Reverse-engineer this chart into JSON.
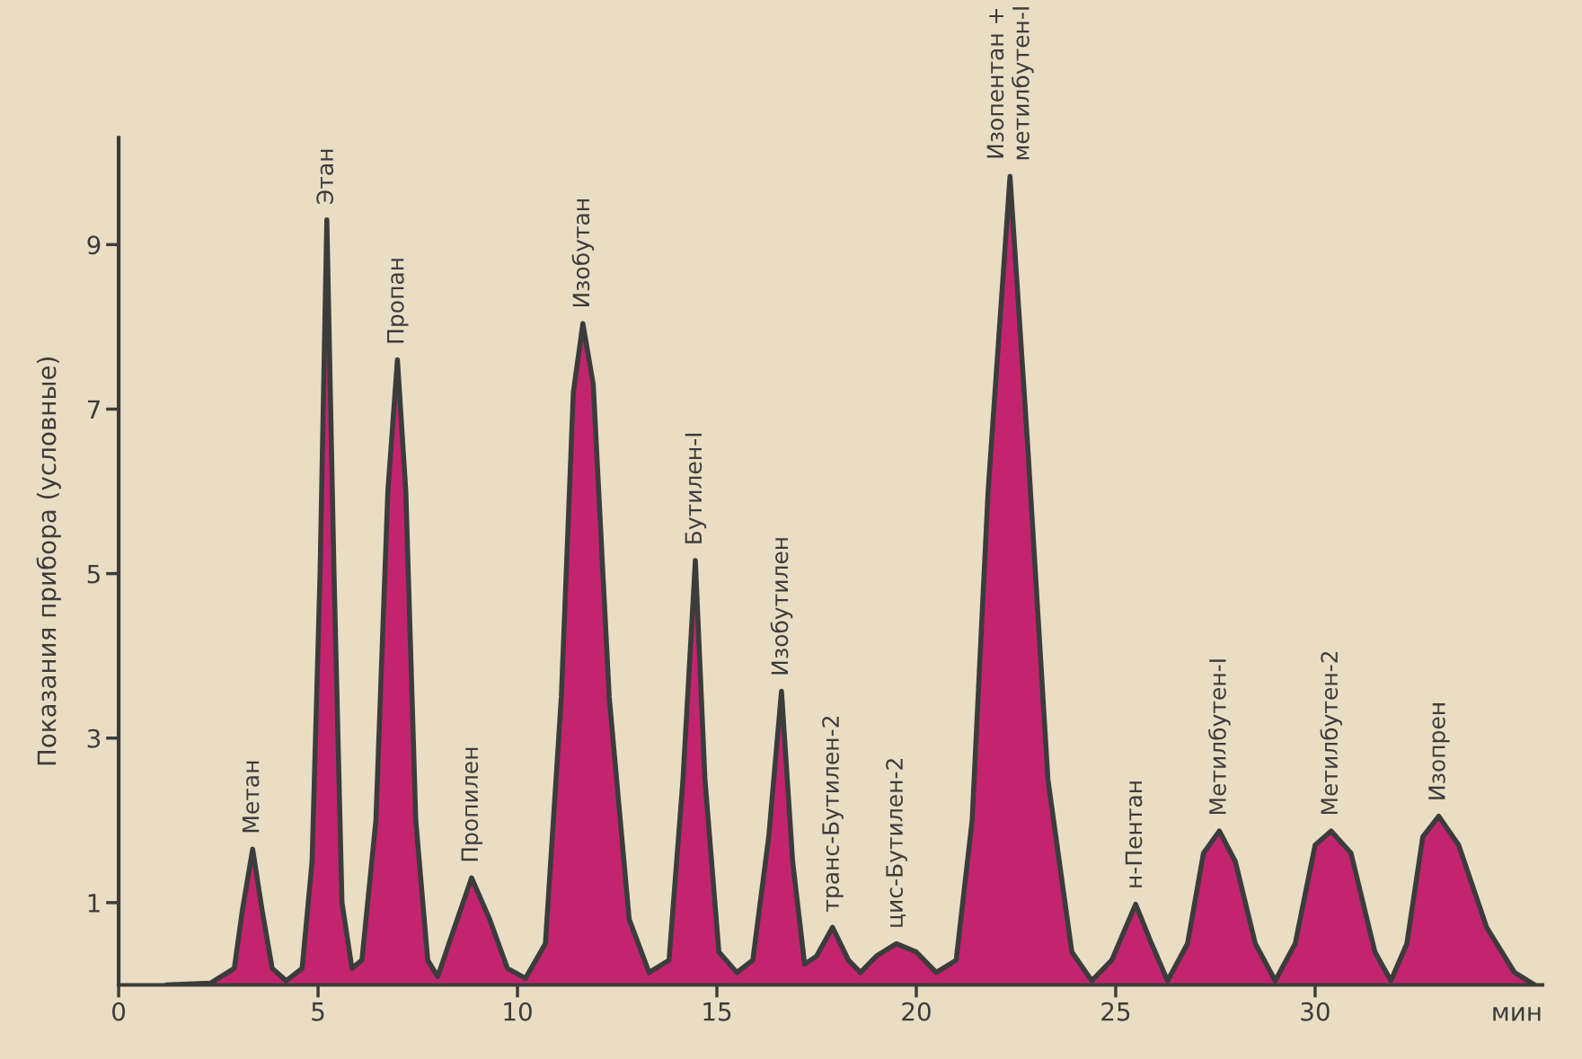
{
  "chart_data": {
    "type": "area",
    "ylabel": "Показания прибора (условные)",
    "xlabel": "мин",
    "xlim": [
      0,
      35.7
    ],
    "ylim": [
      0,
      10.3
    ],
    "xticks": [
      0,
      5,
      10,
      15,
      20,
      25,
      30
    ],
    "yticks": [
      1,
      3,
      5,
      7,
      9
    ],
    "grid": false,
    "legend": false,
    "series": [
      {
        "color": "#c2256e",
        "x": [
          1.2,
          2.3,
          2.9,
          3.1,
          3.36,
          3.6,
          3.85,
          4.2,
          4.6,
          4.85,
          5.05,
          5.22,
          5.4,
          5.6,
          5.85,
          6.1,
          6.45,
          6.75,
          6.99,
          7.2,
          7.45,
          7.75,
          8.0,
          8.35,
          8.85,
          9.3,
          9.75,
          10.2,
          10.7,
          11.1,
          11.4,
          11.64,
          11.9,
          12.3,
          12.8,
          13.3,
          13.8,
          14.15,
          14.46,
          14.7,
          15.05,
          15.5,
          15.9,
          16.3,
          16.62,
          16.9,
          17.2,
          17.5,
          17.9,
          18.3,
          18.6,
          19.0,
          19.5,
          20.0,
          20.5,
          21.0,
          21.4,
          21.8,
          22.35,
          22.8,
          23.3,
          23.9,
          24.4,
          24.9,
          25.5,
          25.9,
          26.3,
          26.8,
          27.2,
          27.6,
          28.0,
          28.5,
          29.0,
          29.5,
          30.0,
          30.4,
          30.9,
          31.5,
          31.9,
          32.3,
          32.7,
          33.1,
          33.6,
          34.3,
          35.0,
          35.5
        ],
        "values": [
          0,
          0.02,
          0.2,
          0.9,
          1.65,
          0.9,
          0.2,
          0.05,
          0.2,
          1.5,
          5.0,
          9.3,
          5.0,
          1.0,
          0.2,
          0.3,
          2.0,
          6.0,
          7.6,
          6.0,
          2.0,
          0.3,
          0.1,
          0.6,
          1.3,
          0.8,
          0.2,
          0.08,
          0.5,
          3.5,
          7.2,
          8.04,
          7.3,
          3.5,
          0.8,
          0.15,
          0.3,
          2.5,
          5.16,
          2.5,
          0.4,
          0.15,
          0.3,
          1.8,
          3.57,
          1.5,
          0.25,
          0.35,
          0.7,
          0.3,
          0.15,
          0.35,
          0.5,
          0.4,
          0.15,
          0.3,
          2.0,
          6.0,
          9.83,
          6.5,
          2.5,
          0.4,
          0.05,
          0.3,
          0.98,
          0.5,
          0.05,
          0.5,
          1.6,
          1.87,
          1.5,
          0.5,
          0.05,
          0.5,
          1.7,
          1.87,
          1.6,
          0.4,
          0.05,
          0.5,
          1.8,
          2.05,
          1.7,
          0.7,
          0.15,
          0
        ]
      }
    ],
    "annotations": [
      {
        "text": "Метан",
        "x": 3.36,
        "y": 1.65
      },
      {
        "text": "Этан",
        "x": 5.22,
        "y": 9.3
      },
      {
        "text": "Пропан",
        "x": 6.99,
        "y": 7.6
      },
      {
        "text": "Пропилен",
        "x": 8.85,
        "y": 1.3
      },
      {
        "text": "Изобутан",
        "x": 11.64,
        "y": 8.04
      },
      {
        "text": "Бутилен-I",
        "x": 14.46,
        "y": 5.16
      },
      {
        "text": "Изобутилен",
        "x": 16.62,
        "y": 3.57
      },
      {
        "text": "транс-Бутилен-2",
        "x": 17.9,
        "y": 0.7
      },
      {
        "text": "цис-Бутилен-2",
        "x": 19.5,
        "y": 0.5
      },
      {
        "text": "Изопентан +\nметилбутен-I",
        "x": 22.35,
        "y": 9.83
      },
      {
        "text": "н-Пентан",
        "x": 25.5,
        "y": 0.98
      },
      {
        "text": "Метилбутен-I",
        "x": 27.6,
        "y": 1.87
      },
      {
        "text": "Метилбутен-2",
        "x": 30.4,
        "y": 1.87
      },
      {
        "text": "Изопрен",
        "x": 33.1,
        "y": 2.05
      }
    ]
  }
}
